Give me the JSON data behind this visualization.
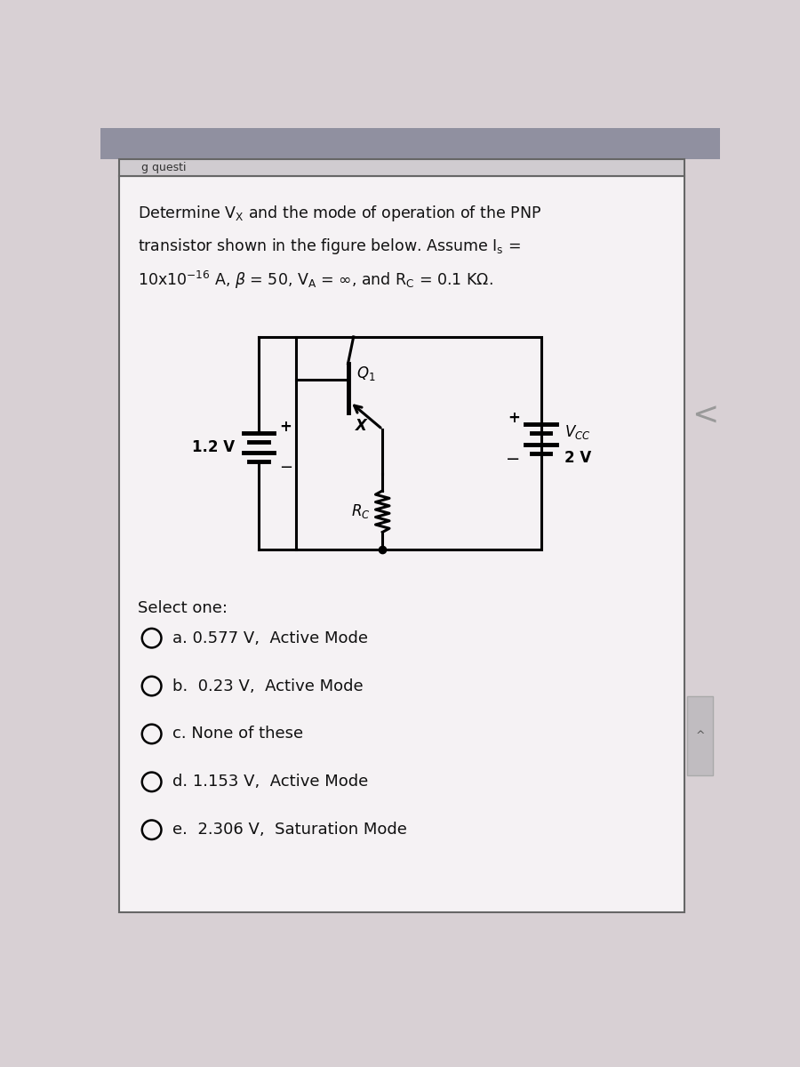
{
  "bg_color_top": "#c8c0c8",
  "bg_color_main": "#d8d0d4",
  "card_color": "#ede8ec",
  "card_border": "#666666",
  "header_color": "#b0a8b0",
  "text_color": "#111111",
  "select_one": "Select one:",
  "options": [
    "a. 0.577 V,  Active Mode",
    "b.  0.23 V,  Active Mode",
    "c. None of these",
    "d. 1.153 V,  Active Mode",
    "e.  2.306 V,  Saturation Mode"
  ],
  "header_text": "g questi",
  "nav_arrow": "<"
}
